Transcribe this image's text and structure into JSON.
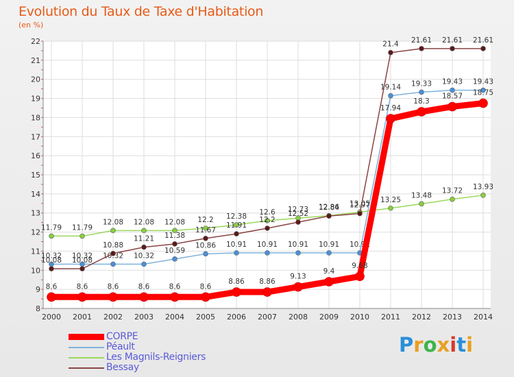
{
  "title": "Evolution du Taux de Taxe d'Habitation",
  "subtitle": "(en %)",
  "logo": {
    "text": "Proxiti",
    "colors": [
      "#2a8fd8",
      "#e8a020",
      "#3cb44b",
      "#e8a020",
      "#d83a2a",
      "#2a8fd8",
      "#e8a020"
    ]
  },
  "chart_data": {
    "type": "line",
    "x": [
      "2000",
      "2001",
      "2002",
      "2003",
      "2004",
      "2005",
      "2006",
      "2007",
      "2008",
      "2009",
      "2010",
      "2011",
      "2012",
      "2013",
      "2014"
    ],
    "ylim": [
      8,
      22
    ],
    "yticks": [
      8,
      9,
      10,
      11,
      12,
      13,
      14,
      15,
      16,
      17,
      18,
      19,
      20,
      21,
      22
    ],
    "grid": true,
    "legend_position": "bottom-left",
    "series": [
      {
        "name": "Les Magnils-Reigniers",
        "color": "#99d95a",
        "marker": "#88cc44",
        "values": [
          11.79,
          11.79,
          12.08,
          12.08,
          12.08,
          12.2,
          12.38,
          12.6,
          12.73,
          12.86,
          13.05,
          13.25,
          13.48,
          13.72,
          13.93
        ],
        "labels": [
          "11.79",
          "11.79",
          "12.08",
          "12.08",
          "12.08",
          "12.2",
          "12.38",
          "12.6",
          "12.73",
          "12.86",
          "13.05",
          "13.25",
          "13.48",
          "13.72",
          "13.93"
        ]
      },
      {
        "name": "Péault",
        "color": "#7fb2dc",
        "marker": "#4a90d8",
        "values": [
          10.32,
          10.32,
          10.32,
          10.32,
          10.59,
          10.86,
          10.91,
          10.91,
          10.91,
          10.91,
          10.91,
          19.14,
          19.33,
          19.43,
          19.43
        ],
        "labels": [
          "10.32",
          "10.32",
          "10.32",
          "10.32",
          "10.59",
          "10.86",
          "10.91",
          "10.91",
          "10.91",
          "10.91",
          "10.91",
          "19.14",
          "19.33",
          "19.43",
          "19.43"
        ]
      },
      {
        "name": "Bessay",
        "color": "#8a4444",
        "marker": "#5a1a1a",
        "values": [
          10.08,
          10.08,
          10.88,
          11.21,
          11.38,
          11.67,
          11.91,
          12.2,
          12.52,
          12.84,
          12.97,
          21.4,
          21.61,
          21.61,
          21.61
        ],
        "labels": [
          "10.08",
          "10.08",
          "10.88",
          "11.21",
          "11.38",
          "11.67",
          "11.91",
          "12.2",
          "12.52",
          "12.84",
          "12.97",
          "21.4",
          "21.61",
          "21.61",
          "21.61"
        ]
      },
      {
        "name": "CORPE",
        "color": "#ff0000",
        "marker": "#ff0000",
        "values": [
          8.6,
          8.6,
          8.6,
          8.6,
          8.6,
          8.6,
          8.86,
          8.86,
          9.13,
          9.4,
          9.68,
          17.94,
          18.3,
          18.57,
          18.75
        ],
        "labels": [
          "8.6",
          "8.6",
          "8.6",
          "8.6",
          "8.6",
          "8.6",
          "8.86",
          "8.86",
          "9.13",
          "9.4",
          "9.68",
          "17.94",
          "18.3",
          "18.57",
          "18.75"
        ]
      }
    ],
    "legend": [
      "CORPE",
      "Péault",
      "Les Magnils-Reigniers",
      "Bessay"
    ]
  }
}
